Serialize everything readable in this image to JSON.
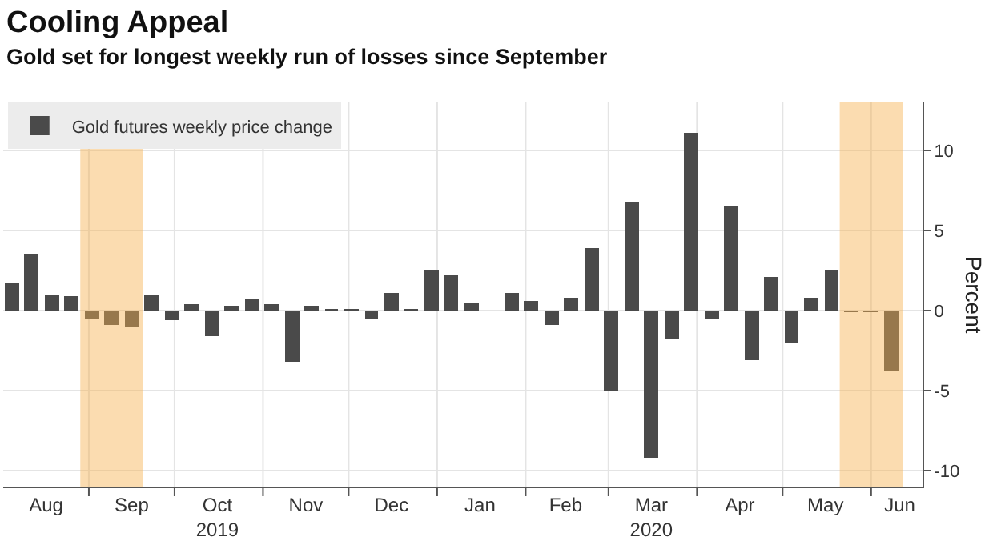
{
  "chart_data": {
    "type": "bar",
    "title": "Cooling Appeal",
    "subtitle": "Gold set for longest weekly run of losses since September",
    "ylabel": "Percent",
    "x": [
      "2019-08-05",
      "2019-08-12",
      "2019-08-19",
      "2019-08-26",
      "2019-09-02",
      "2019-09-09",
      "2019-09-16",
      "2019-09-23",
      "2019-09-30",
      "2019-10-07",
      "2019-10-14",
      "2019-10-21",
      "2019-10-28",
      "2019-11-04",
      "2019-11-11",
      "2019-11-18",
      "2019-11-25",
      "2019-12-02",
      "2019-12-09",
      "2019-12-16",
      "2019-12-23",
      "2019-12-30",
      "2020-01-06",
      "2020-01-13",
      "2020-01-20",
      "2020-01-27",
      "2020-02-03",
      "2020-02-10",
      "2020-02-17",
      "2020-02-24",
      "2020-03-02",
      "2020-03-09",
      "2020-03-16",
      "2020-03-23",
      "2020-03-30",
      "2020-04-06",
      "2020-04-13",
      "2020-04-20",
      "2020-04-27",
      "2020-05-04",
      "2020-05-11",
      "2020-05-18",
      "2020-05-25",
      "2020-06-01",
      "2020-06-08"
    ],
    "series": [
      {
        "name": "Gold futures weekly price change",
        "color": "#4a4a4a",
        "values": [
          1.7,
          3.5,
          1.0,
          0.9,
          -0.5,
          -0.9,
          -1.0,
          1.0,
          -0.6,
          0.4,
          -1.6,
          0.3,
          0.7,
          0.4,
          -3.2,
          0.3,
          0.1,
          0.1,
          -0.5,
          1.1,
          0.1,
          2.5,
          2.2,
          0.5,
          0.0,
          1.1,
          0.6,
          -0.9,
          0.8,
          3.9,
          -5.0,
          6.8,
          -9.2,
          -1.8,
          11.1,
          -0.5,
          6.5,
          -3.1,
          2.1,
          -2.0,
          0.8,
          2.5,
          -0.1,
          -0.1,
          -3.8
        ]
      }
    ],
    "xlim": [
      "2019-08-02",
      "2020-06-19"
    ],
    "xticks": [
      {
        "value": "2019-08-17",
        "label": "Aug"
      },
      {
        "value": "2019-09-01",
        "label": null
      },
      {
        "value": "2019-09-16",
        "label": "Sep"
      },
      {
        "value": "2019-10-01",
        "label": null
      },
      {
        "value": "2019-10-16",
        "label": "Oct\n2019"
      },
      {
        "value": "2019-11-01",
        "label": null
      },
      {
        "value": "2019-11-16",
        "label": "Nov"
      },
      {
        "value": "2019-12-01",
        "label": null
      },
      {
        "value": "2019-12-16",
        "label": "Dec"
      },
      {
        "value": "2020-01-01",
        "label": null
      },
      {
        "value": "2020-01-16",
        "label": "Jan"
      },
      {
        "value": "2020-02-01",
        "label": null
      },
      {
        "value": "2020-02-15",
        "label": "Feb"
      },
      {
        "value": "2020-03-01",
        "label": null
      },
      {
        "value": "2020-03-16",
        "label": "Mar\n2020"
      },
      {
        "value": "2020-04-01",
        "label": null
      },
      {
        "value": "2020-04-16",
        "label": "Apr"
      },
      {
        "value": "2020-05-01",
        "label": null
      },
      {
        "value": "2020-05-16",
        "label": "May"
      },
      {
        "value": "2020-06-01",
        "label": null
      },
      {
        "value": "2020-06-11",
        "label": "Jun"
      }
    ],
    "ylim": [
      -11,
      13
    ],
    "yticks": [
      -10,
      -5,
      0,
      5,
      10
    ],
    "bands": [
      {
        "axis": "x",
        "from": "2019-08-29",
        "to": "2019-09-20",
        "color": "#f7b250"
      },
      {
        "axis": "x",
        "from": "2020-05-21",
        "to": "2020-06-12",
        "color": "#f7b250"
      }
    ],
    "grid": true,
    "legend": "top left"
  }
}
